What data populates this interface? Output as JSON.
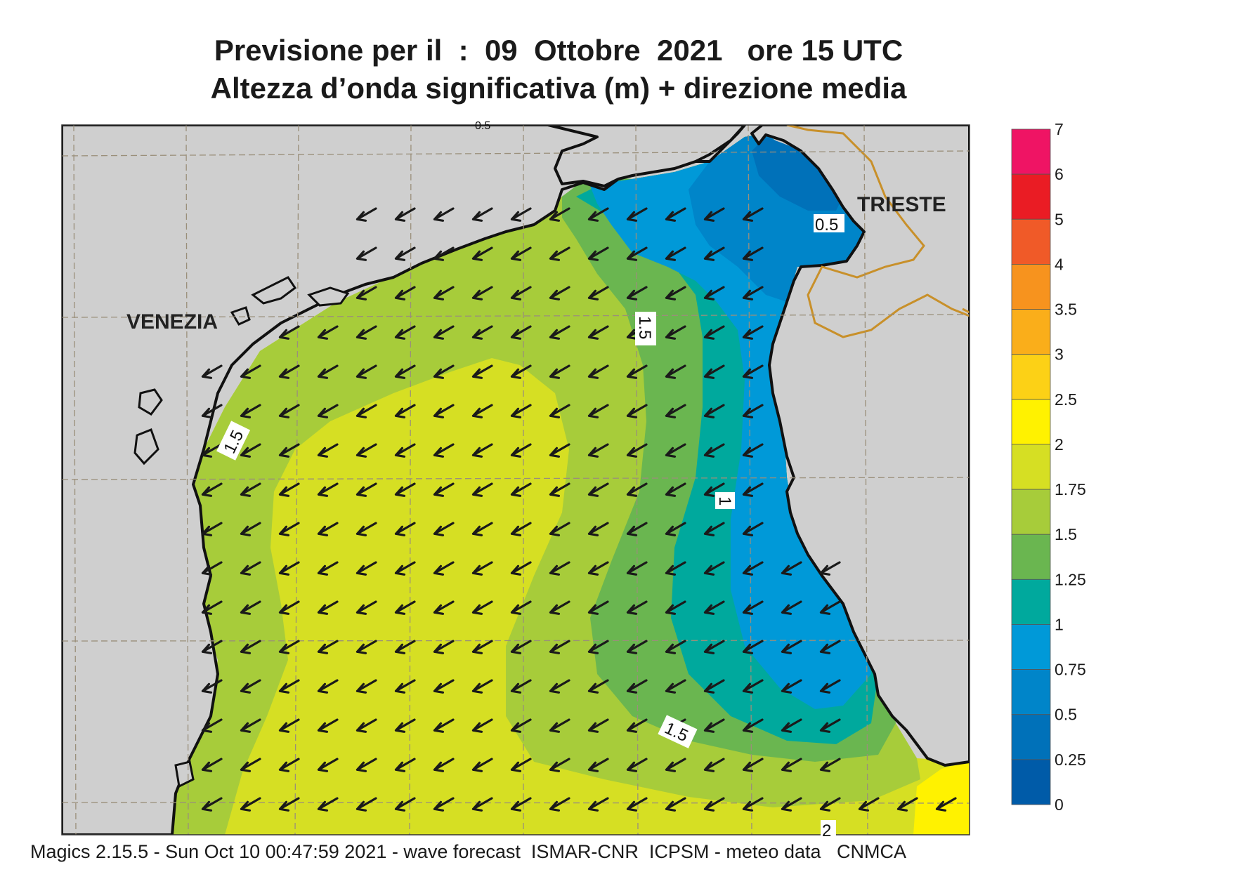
{
  "title_line1": "Previsione per il  :  09  Ottobre  2021   ore 15 UTC",
  "title_line2": "Altezza d’onda significativa (m) + direzione media",
  "footer": "Magics 2.15.5 - Sun Oct 10 00:47:59 2021 - wave forecast  ISMAR-CNR  ICPSM - meteo data   CNMCA",
  "places": {
    "venezia": "VENEZIA",
    "trieste": "TRIESTE"
  },
  "contour_labels": {
    "trieste_05": "0.5",
    "venezia_15": "1.5",
    "north_15": "1.5",
    "east_1": "1",
    "south_15": "1.5",
    "bottom_2": "2",
    "top_partial": "0.5"
  },
  "legend": {
    "labels": [
      "7",
      "6",
      "5",
      "4",
      "3.5",
      "3",
      "2.5",
      "2",
      "1.75",
      "1.5",
      "1.25",
      "1",
      "0.75",
      "0.5",
      "0.25",
      "0"
    ],
    "colors": [
      "#ef1464",
      "#ea1c24",
      "#f05a28",
      "#f7931e",
      "#faae1a",
      "#fcd116",
      "#fff200",
      "#d6df23",
      "#a7cc3a",
      "#6ab650",
      "#00a99d",
      "#0099d8",
      "#0085c9",
      "#0071b9",
      "#005ba8"
    ]
  },
  "colors": {
    "land": "#cfcfcf",
    "coast": "#111111",
    "border": "#c8902a",
    "grid": "#9a8f7a",
    "arrow": "#1a1a1a"
  },
  "wave_direction": "south-west"
}
